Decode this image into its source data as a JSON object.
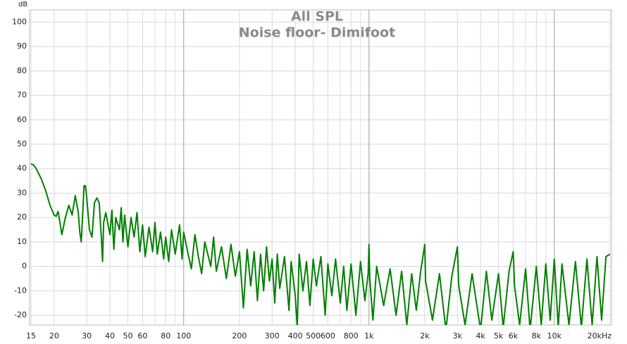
{
  "chart_data": {
    "type": "line",
    "title": "All SPL",
    "subtitle": "Noise floor- Dimifoot",
    "y_label": "dB",
    "color": "#008000",
    "log_x": true,
    "grid": true,
    "xlim": [
      15,
      20000
    ],
    "ylim": [
      -24,
      105
    ],
    "xticks": [
      15,
      20,
      30,
      40,
      50,
      60,
      80,
      100,
      200,
      300,
      400,
      500,
      600,
      800,
      {
        "value": 1000,
        "label": "1k"
      },
      {
        "value": 2000,
        "label": "2k"
      },
      {
        "value": 3000,
        "label": "3k"
      },
      {
        "value": 4000,
        "label": "4k"
      },
      {
        "value": 5000,
        "label": "5k"
      },
      {
        "value": 6000,
        "label": "6k"
      },
      {
        "value": 8000,
        "label": "8k"
      },
      {
        "value": 10000,
        "label": "10k"
      },
      {
        "value": 20000,
        "label": "20kHz"
      }
    ],
    "minor_grid": [
      70,
      90,
      700,
      900,
      7000,
      9000
    ],
    "major_grid": [
      100,
      1000,
      10000
    ],
    "yticks": [
      -20,
      -10,
      0,
      10,
      20,
      30,
      40,
      50,
      60,
      70,
      80,
      90,
      100
    ],
    "x": [
      15,
      15.5,
      16,
      17,
      18,
      19,
      20,
      20.5,
      21,
      21.5,
      22,
      23,
      24,
      25,
      26,
      27,
      27.5,
      28,
      28.5,
      29,
      29.5,
      30,
      31,
      32,
      33,
      34,
      35,
      36,
      36.5,
      37,
      38,
      40,
      41,
      42,
      43,
      45,
      46,
      47,
      48,
      50,
      52,
      54,
      56,
      58,
      60,
      62,
      65,
      68,
      70,
      72,
      75,
      78,
      80,
      83,
      86,
      90,
      95,
      98,
      100,
      105,
      110,
      115,
      120,
      125,
      130,
      140,
      145,
      150,
      160,
      170,
      180,
      190,
      200,
      210,
      220,
      230,
      240,
      250,
      260,
      270,
      280,
      290,
      300,
      310,
      320,
      330,
      350,
      370,
      380,
      400,
      410,
      420,
      440,
      460,
      480,
      500,
      520,
      550,
      580,
      600,
      630,
      660,
      700,
      730,
      760,
      800,
      850,
      900,
      950,
      990,
      1000,
      1010,
      1050,
      1100,
      1200,
      1300,
      1400,
      1500,
      1600,
      1700,
      1800,
      1900,
      2000,
      2020,
      2200,
      2400,
      2600,
      2800,
      3000,
      3050,
      3300,
      3600,
      4000,
      4300,
      4600,
      5000,
      5300,
      5700,
      6000,
      6100,
      6500,
      7000,
      7400,
      8000,
      8500,
      9000,
      9500,
      10000,
      10500,
      11000,
      12000,
      13000,
      14000,
      15000,
      16000,
      17000,
      18000,
      19000,
      20000
    ],
    "values": [
      42,
      41.5,
      40,
      36,
      31,
      25,
      21,
      20.5,
      22.5,
      18,
      13,
      20,
      25,
      21,
      29,
      22,
      14,
      10,
      21,
      33,
      33,
      28,
      15,
      12,
      26,
      28,
      26,
      11,
      2,
      18,
      22,
      13,
      23,
      7,
      20,
      15,
      24,
      10,
      21,
      8,
      20,
      12,
      22,
      6,
      17,
      4,
      16,
      6,
      18,
      5,
      14,
      3,
      12,
      2,
      15,
      5,
      17,
      3,
      14,
      6,
      -1,
      13,
      4,
      -3,
      10,
      0,
      12,
      -2,
      8,
      -5,
      9,
      -4,
      6,
      -17,
      7,
      -8,
      6,
      -14,
      5,
      -10,
      8,
      -6,
      3,
      -15,
      5,
      -9,
      4,
      -18,
      2,
      -12,
      -25,
      5,
      -10,
      2,
      -16,
      3,
      -8,
      4,
      -20,
      1,
      -12,
      3,
      -15,
      0,
      -18,
      1,
      -20,
      2,
      -14,
      -3,
      9,
      -5,
      -22,
      0,
      -16,
      -1,
      -20,
      -2,
      -24,
      -3,
      -18,
      -2,
      9,
      -6,
      -22,
      -3,
      -26,
      -4,
      8,
      -8,
      -24,
      -3,
      -26,
      -2,
      -22,
      -3,
      -25,
      -2,
      6,
      -8,
      -24,
      -1,
      -26,
      0,
      -24,
      1,
      -22,
      3,
      -25,
      1,
      -24,
      2,
      -25,
      3,
      -24,
      4,
      -22,
      4,
      5
    ]
  }
}
